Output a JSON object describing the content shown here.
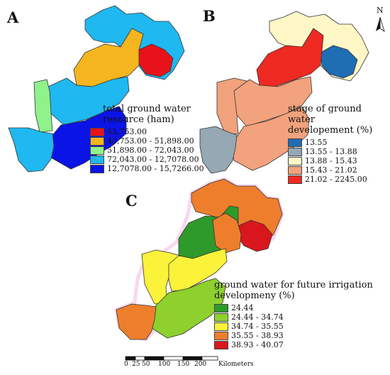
{
  "panels": {
    "a": {
      "letter": "A",
      "legend_title_line1": "total ground water",
      "legend_title_line2": "resource (ham)",
      "classes": [
        {
          "label": "43,753.00",
          "color": "#e8121b"
        },
        {
          "label": "43,753.00 - 51,898.00",
          "color": "#f5b51e"
        },
        {
          "label": "51,898.00 - 72,043.00",
          "color": "#8ff28b"
        },
        {
          "label": "72,043.00 - 12,7078.00",
          "color": "#1fb8f0"
        },
        {
          "label": "12,7078.00 - 15,7266.00",
          "color": "#0a14e6"
        }
      ]
    },
    "b": {
      "letter": "B",
      "legend_title_line1": "stage of ground water",
      "legend_title_line2": "developement (%)",
      "classes": [
        {
          "label": "13.55",
          "color": "#1f6db3"
        },
        {
          "label": "13.55 - 13.88",
          "color": "#95a8b4"
        },
        {
          "label": "13.88 - 15.43",
          "color": "#fff7c6"
        },
        {
          "label": "15.43 - 21.02",
          "color": "#f2a27c"
        },
        {
          "label": "21.02 - 2245.00",
          "color": "#ee2a22"
        }
      ]
    },
    "c": {
      "letter": "C",
      "legend_title_line1": "ground water for future irrigation",
      "legend_title_line2": "developmeny (%)",
      "classes": [
        {
          "label": "24.44",
          "color": "#2e9a2b"
        },
        {
          "label": "24.44 - 34.74",
          "color": "#8ed02e"
        },
        {
          "label": "34.74 - 35.55",
          "color": "#fbf23a"
        },
        {
          "label": "35.55 - 38.93",
          "color": "#ee7e2c"
        },
        {
          "label": "38.93 - 40.07",
          "color": "#d9161d"
        }
      ]
    }
  },
  "north_arrow": {
    "label": "N"
  },
  "scale_bar": {
    "ticks": [
      "0",
      "25",
      "50",
      "100",
      "150",
      "200"
    ],
    "unit": "Kilometers"
  }
}
